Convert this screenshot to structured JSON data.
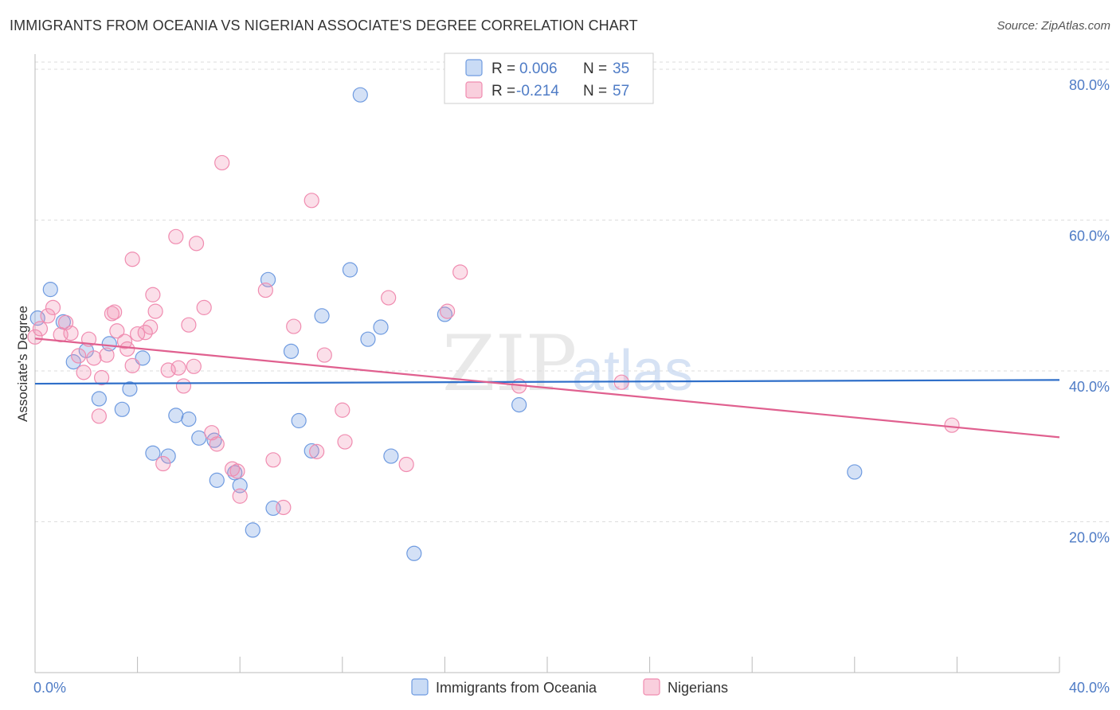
{
  "title": "IMMIGRANTS FROM OCEANIA VS NIGERIAN ASSOCIATE'S DEGREE CORRELATION CHART",
  "source": "Source: ZipAtlas.com",
  "watermark": {
    "part1": "ZIP",
    "part2": "atlas"
  },
  "legend": {
    "r_label": "R =",
    "n_label": "N =",
    "rows": [
      {
        "r": "0.006",
        "n": "35",
        "color": "#6f9be0"
      },
      {
        "r": "-0.214",
        "n": "57",
        "color": "#f08cb0"
      }
    ]
  },
  "chart_data": {
    "type": "scatter",
    "title": "IMMIGRANTS FROM OCEANIA VS NIGERIAN ASSOCIATE'S DEGREE CORRELATION CHART",
    "xlabel": "",
    "ylabel": "Associate's Degree",
    "xlim": [
      0,
      40
    ],
    "ylim": [
      0,
      82
    ],
    "x_tick_labels": [
      "0.0%",
      "40.0%"
    ],
    "y_tick_labels": [
      "20.0%",
      "40.0%",
      "60.0%",
      "80.0%"
    ],
    "y_ticks": [
      20,
      40,
      60,
      80
    ],
    "grid": true,
    "legend_position": "top-center",
    "series": [
      {
        "name": "Immigrants from Oceania",
        "color": "#6f9be0",
        "trend": {
          "x": [
            0,
            40
          ],
          "y": [
            38.3,
            38.8
          ]
        },
        "points": [
          [
            0.1,
            47.0
          ],
          [
            0.6,
            50.8
          ],
          [
            1.1,
            46.5
          ],
          [
            1.5,
            41.2
          ],
          [
            2.0,
            42.7
          ],
          [
            2.5,
            36.3
          ],
          [
            2.9,
            43.6
          ],
          [
            3.4,
            34.9
          ],
          [
            3.7,
            37.6
          ],
          [
            4.2,
            41.7
          ],
          [
            4.6,
            29.1
          ],
          [
            5.2,
            28.7
          ],
          [
            5.5,
            34.1
          ],
          [
            6.0,
            33.6
          ],
          [
            6.4,
            31.1
          ],
          [
            7.0,
            30.8
          ],
          [
            7.1,
            25.5
          ],
          [
            7.8,
            26.5
          ],
          [
            8.0,
            24.8
          ],
          [
            8.5,
            18.9
          ],
          [
            9.1,
            52.1
          ],
          [
            9.3,
            21.8
          ],
          [
            10.0,
            42.6
          ],
          [
            10.3,
            33.4
          ],
          [
            10.8,
            29.4
          ],
          [
            11.2,
            47.3
          ],
          [
            12.3,
            53.4
          ],
          [
            12.7,
            76.6
          ],
          [
            13.0,
            44.2
          ],
          [
            13.5,
            45.8
          ],
          [
            13.9,
            28.7
          ],
          [
            14.8,
            15.8
          ],
          [
            16.0,
            47.5
          ],
          [
            18.9,
            35.5
          ],
          [
            32.0,
            26.6
          ]
        ]
      },
      {
        "name": "Nigerians",
        "color": "#f08cb0",
        "trend": {
          "x": [
            0,
            40
          ],
          "y": [
            44.3,
            31.2
          ]
        },
        "points": [
          [
            0.0,
            44.5
          ],
          [
            0.2,
            45.6
          ],
          [
            0.5,
            47.3
          ],
          [
            0.7,
            48.4
          ],
          [
            1.0,
            44.8
          ],
          [
            1.2,
            46.4
          ],
          [
            1.4,
            45.0
          ],
          [
            1.7,
            42.0
          ],
          [
            1.9,
            39.8
          ],
          [
            2.1,
            44.2
          ],
          [
            2.3,
            41.7
          ],
          [
            2.5,
            34.0
          ],
          [
            2.6,
            39.1
          ],
          [
            2.8,
            42.1
          ],
          [
            3.0,
            47.6
          ],
          [
            3.1,
            47.8
          ],
          [
            3.2,
            45.3
          ],
          [
            3.5,
            43.9
          ],
          [
            3.6,
            42.9
          ],
          [
            3.8,
            40.7
          ],
          [
            3.8,
            54.8
          ],
          [
            4.0,
            44.9
          ],
          [
            4.3,
            45.1
          ],
          [
            4.5,
            45.8
          ],
          [
            4.6,
            50.1
          ],
          [
            4.7,
            47.9
          ],
          [
            5.0,
            27.7
          ],
          [
            5.2,
            40.1
          ],
          [
            5.5,
            57.8
          ],
          [
            5.6,
            40.4
          ],
          [
            5.8,
            38.0
          ],
          [
            6.0,
            46.1
          ],
          [
            6.2,
            40.6
          ],
          [
            6.3,
            56.9
          ],
          [
            6.6,
            48.4
          ],
          [
            6.9,
            31.8
          ],
          [
            7.1,
            30.3
          ],
          [
            7.3,
            67.6
          ],
          [
            7.7,
            27.0
          ],
          [
            7.9,
            26.7
          ],
          [
            8.0,
            23.4
          ],
          [
            9.0,
            50.7
          ],
          [
            9.3,
            28.2
          ],
          [
            9.7,
            21.9
          ],
          [
            10.1,
            45.9
          ],
          [
            10.8,
            62.6
          ],
          [
            11.0,
            29.3
          ],
          [
            11.3,
            42.1
          ],
          [
            12.0,
            34.8
          ],
          [
            12.1,
            30.6
          ],
          [
            13.8,
            49.7
          ],
          [
            14.5,
            27.6
          ],
          [
            16.1,
            47.9
          ],
          [
            16.6,
            53.1
          ],
          [
            18.9,
            38.0
          ],
          [
            22.9,
            38.5
          ],
          [
            35.8,
            32.8
          ]
        ]
      }
    ]
  }
}
